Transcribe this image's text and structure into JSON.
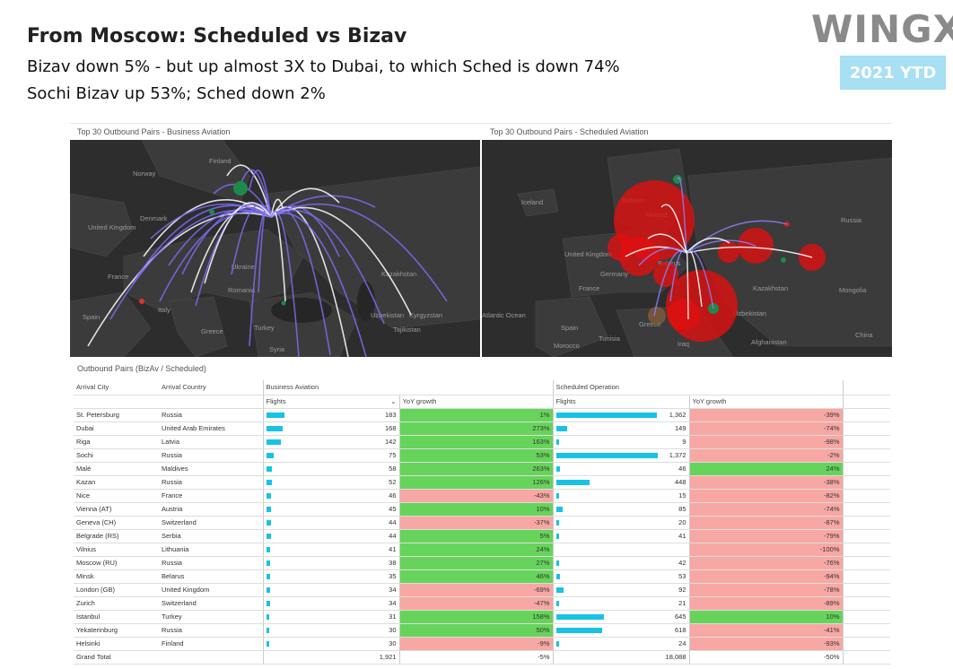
{
  "header": {
    "title": "From Moscow: Scheduled vs Bizav",
    "subtitle1": "Bizav down 5% - but up almost 3X to Dubai, to which Sched is down 74%",
    "subtitle2": "Sochi Bizav up 53%; Sched down 2%",
    "logo": "WINGX",
    "badge": "2021 YTD"
  },
  "maps": {
    "left_title": "Top 30 Outbound Pairs - Business Aviation",
    "right_title": "Top 30 Outbound Pairs - Scheduled Aviation",
    "left_labels": [
      "Finland",
      "Norway",
      "Denmark",
      "United Kingdom",
      "France",
      "Spain",
      "Italy",
      "Romania",
      "Ukraine",
      "Greece",
      "Turkey",
      "Syria",
      "Kazakhstan",
      "Uzbekistan",
      "Kyrgyzstan",
      "Tajikistan"
    ],
    "right_labels": [
      "Iceland",
      "Sweden",
      "Finland",
      "Russia",
      "Belarus",
      "Germany",
      "United Kingdom",
      "France",
      "Spain",
      "Kazakhstan",
      "Uzbekistan",
      "Afghanistan",
      "Tunisia",
      "Morocco",
      "Greece",
      "Iraq",
      "Mongolia",
      "China",
      "Atlantic Ocean"
    ],
    "colors": {
      "map_bg": "#2d2d2d",
      "bizav_arc": "#7b6cf0",
      "sched_bubble": "#e01010"
    }
  },
  "table": {
    "title": "Outbound Pairs (BizAv / Scheduled)",
    "headers": {
      "arrival_city": "Arrival City",
      "arrival_country": "Arrival Country",
      "business_aviation": "Business Aviation",
      "scheduled_operation": "Scheduled Operation",
      "flights": "Flights",
      "yoy_growth": "YoY growth",
      "sort_icon": "chevron-down-icon"
    },
    "rows": [
      {
        "city": "St. Petersburg",
        "country": "Russia",
        "biz_flights": "183",
        "biz_yoy": "1%",
        "sched_flights": "1,362",
        "sched_yoy": "-39%"
      },
      {
        "city": "Dubai",
        "country": "United Arab Emirates",
        "biz_flights": "168",
        "biz_yoy": "273%",
        "sched_flights": "149",
        "sched_yoy": "-74%"
      },
      {
        "city": "Riga",
        "country": "Latvia",
        "biz_flights": "142",
        "biz_yoy": "163%",
        "sched_flights": "9",
        "sched_yoy": "-98%"
      },
      {
        "city": "Sochi",
        "country": "Russia",
        "biz_flights": "75",
        "biz_yoy": "53%",
        "sched_flights": "1,372",
        "sched_yoy": "-2%"
      },
      {
        "city": "Malé",
        "country": "Maldives",
        "biz_flights": "58",
        "biz_yoy": "263%",
        "sched_flights": "46",
        "sched_yoy": "24%"
      },
      {
        "city": "Kazan",
        "country": "Russia",
        "biz_flights": "52",
        "biz_yoy": "126%",
        "sched_flights": "448",
        "sched_yoy": "-38%"
      },
      {
        "city": "Nice",
        "country": "France",
        "biz_flights": "46",
        "biz_yoy": "-43%",
        "sched_flights": "15",
        "sched_yoy": "-82%"
      },
      {
        "city": "Vienna (AT)",
        "country": "Austria",
        "biz_flights": "45",
        "biz_yoy": "10%",
        "sched_flights": "85",
        "sched_yoy": "-74%"
      },
      {
        "city": "Geneva (CH)",
        "country": "Switzerland",
        "biz_flights": "44",
        "biz_yoy": "-37%",
        "sched_flights": "20",
        "sched_yoy": "-87%"
      },
      {
        "city": "Belgrade (RS)",
        "country": "Serbia",
        "biz_flights": "44",
        "biz_yoy": "5%",
        "sched_flights": "41",
        "sched_yoy": "-79%"
      },
      {
        "city": "Vilnius",
        "country": "Lithuania",
        "biz_flights": "41",
        "biz_yoy": "24%",
        "sched_flights": "",
        "sched_yoy": "-100%"
      },
      {
        "city": "Moscow (RU)",
        "country": "Russia",
        "biz_flights": "38",
        "biz_yoy": "27%",
        "sched_flights": "42",
        "sched_yoy": "-76%"
      },
      {
        "city": "Minsk",
        "country": "Belarus",
        "biz_flights": "35",
        "biz_yoy": "46%",
        "sched_flights": "53",
        "sched_yoy": "-94%"
      },
      {
        "city": "London (GB)",
        "country": "United Kingdom",
        "biz_flights": "34",
        "biz_yoy": "-69%",
        "sched_flights": "92",
        "sched_yoy": "-78%"
      },
      {
        "city": "Zurich",
        "country": "Switzerland",
        "biz_flights": "34",
        "biz_yoy": "-47%",
        "sched_flights": "21",
        "sched_yoy": "-89%"
      },
      {
        "city": "Istanbul",
        "country": "Turkey",
        "biz_flights": "31",
        "biz_yoy": "158%",
        "sched_flights": "645",
        "sched_yoy": "10%"
      },
      {
        "city": "Yekaterinburg",
        "country": "Russia",
        "biz_flights": "30",
        "biz_yoy": "50%",
        "sched_flights": "618",
        "sched_yoy": "-41%"
      },
      {
        "city": "Helsinki",
        "country": "Finland",
        "biz_flights": "30",
        "biz_yoy": "-9%",
        "sched_flights": "24",
        "sched_yoy": "-93%"
      }
    ],
    "total": {
      "label": "Grand Total",
      "biz_flights": "1,921",
      "biz_yoy": "-5%",
      "sched_flights": "18,088",
      "sched_yoy": "-50%"
    },
    "colors": {
      "bar": "#17c3e5",
      "positive": "#66d45a",
      "negative": "#f7a8a4"
    }
  },
  "chart_data": {
    "type": "table",
    "title": "Outbound Pairs (BizAv / Scheduled)",
    "columns": [
      "Arrival City",
      "Arrival Country",
      "Business Aviation Flights",
      "Business Aviation YoY growth",
      "Scheduled Operation Flights",
      "Scheduled Operation YoY growth"
    ],
    "biz_flights": [
      183,
      168,
      142,
      75,
      58,
      52,
      46,
      45,
      44,
      44,
      41,
      38,
      35,
      34,
      34,
      31,
      30,
      30
    ],
    "biz_yoy_pct": [
      1,
      273,
      163,
      53,
      263,
      126,
      -43,
      10,
      -37,
      5,
      24,
      27,
      46,
      -69,
      -47,
      158,
      50,
      -9
    ],
    "sched_flights": [
      1362,
      149,
      9,
      1372,
      46,
      448,
      15,
      85,
      20,
      41,
      0,
      42,
      53,
      92,
      21,
      645,
      618,
      24
    ],
    "sched_yoy_pct": [
      -39,
      -74,
      -98,
      -2,
      24,
      -38,
      -82,
      -74,
      -87,
      -79,
      -100,
      -76,
      -94,
      -78,
      -89,
      10,
      -41,
      -93
    ],
    "grand_total": {
      "biz_flights": 1921,
      "biz_yoy_pct": -5,
      "sched_flights": 18088,
      "sched_yoy_pct": -50
    }
  }
}
